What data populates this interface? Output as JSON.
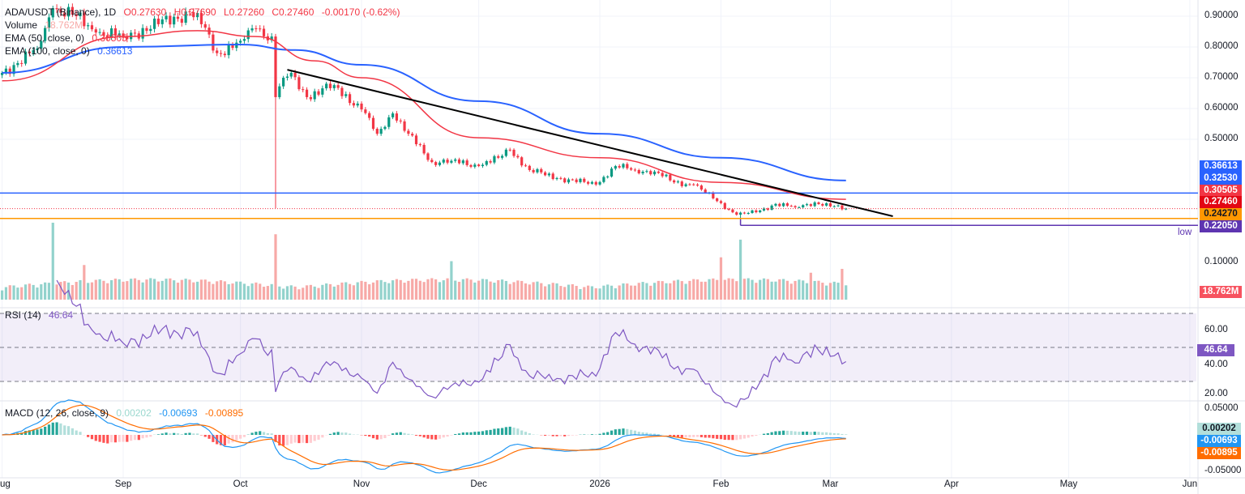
{
  "header": {
    "symbol": "ADA/USDT (Binance), 1D",
    "open": "O0.27630",
    "high": "H0.27690",
    "low": "L0.27260",
    "close": "C0.27460",
    "change": "-0.00170 (-0.62%)"
  },
  "indicators": {
    "volume_label": "Volume",
    "volume_value": "18.762M",
    "ema50_label": "EMA (50, close, 0)",
    "ema50_value": "0.30505",
    "ema100_label": "EMA (100, close, 0)",
    "ema100_value": "0.36613",
    "rsi_label": "RSI (14)",
    "rsi_value": "46.64",
    "macd_label": "MACD (12, 26, close, 9)",
    "macd_hist": "0.00202",
    "macd_line": "-0.00693",
    "macd_signal": "-0.00895"
  },
  "colors": {
    "up": "#089981",
    "down": "#f23645",
    "up_vol": "#92d2cc",
    "down_vol": "#f7a9a7",
    "ema50": "#f23645",
    "ema100": "#2962ff",
    "rsi": "#7e57c2",
    "macd": "#2196f3",
    "signal": "#ff6d00",
    "trendline": "#000000",
    "support_blue": "#2962ff",
    "support_orange": "#ff9800",
    "low_line": "#5e35b1"
  },
  "price_axis": {
    "ticks": [
      "0.90000",
      "0.80000",
      "0.70000",
      "0.60000",
      "0.50000",
      "0.10000"
    ]
  },
  "rsi_axis": {
    "ticks": [
      "60.00",
      "40.00",
      "20.00"
    ]
  },
  "macd_axis": {
    "ticks": [
      "0.05000",
      "-0.05000"
    ]
  },
  "badges": [
    {
      "text": "0.36613",
      "value": 0.36613,
      "color": "#2962ff",
      "fg": "#fff"
    },
    {
      "text": "0.32530",
      "value": 0.3253,
      "color": "#2962ff",
      "fg": "#fff"
    },
    {
      "text": "0.30505",
      "value": 0.30505,
      "color": "#f23645",
      "fg": "#fff"
    },
    {
      "text": "0.27460",
      "value": 0.2746,
      "color": "#e30613",
      "fg": "#fff"
    },
    {
      "text": "0.24270",
      "value": 0.2427,
      "color": "#ff9800",
      "fg": "#131722"
    },
    {
      "text": "0.22050",
      "value": 0.2205,
      "color": "#5e35b1",
      "fg": "#fff"
    }
  ],
  "low_label": "low",
  "volume_badge": "18.762M",
  "rsi_badge": "46.64",
  "macd_badges": [
    "0.00202",
    "-0.00693",
    "-0.00895"
  ],
  "time_axis": [
    {
      "label": "Aug",
      "date": "2025-08-01"
    },
    {
      "label": "Sep",
      "date": "2025-09-01"
    },
    {
      "label": "Oct",
      "date": "2025-10-01"
    },
    {
      "label": "Nov",
      "date": "2025-11-01"
    },
    {
      "label": "Dec",
      "date": "2025-12-01"
    },
    {
      "label": "2026",
      "date": "2026-01-01"
    },
    {
      "label": "Feb",
      "date": "2026-02-01"
    },
    {
      "label": "Mar",
      "date": "2026-03-01"
    },
    {
      "label": "Apr",
      "date": "2026-04-01"
    },
    {
      "label": "May",
      "date": "2026-05-01"
    },
    {
      "label": "Jun",
      "date": "2026-06-01"
    }
  ],
  "chart_data": {
    "type": "candlestick",
    "x_range": [
      "2025-08-01",
      "2026-06-01"
    ],
    "y_range": [
      0.05,
      0.95
    ],
    "close_anchors": [
      [
        "2025-08-01",
        0.716
      ],
      [
        "2025-08-10",
        0.795
      ],
      [
        "2025-08-14",
        0.926
      ],
      [
        "2025-08-20",
        0.9
      ],
      [
        "2025-08-25",
        0.847
      ],
      [
        "2025-09-01",
        0.834
      ],
      [
        "2025-09-10",
        0.874
      ],
      [
        "2025-09-18",
        0.913
      ],
      [
        "2025-09-21",
        0.874
      ],
      [
        "2025-09-25",
        0.78
      ],
      [
        "2025-10-01",
        0.82
      ],
      [
        "2025-10-05",
        0.86
      ],
      [
        "2025-10-09",
        0.834
      ],
      [
        "2025-10-10",
        0.637
      ],
      [
        "2025-10-12",
        0.7
      ],
      [
        "2025-10-14",
        0.716
      ],
      [
        "2025-10-18",
        0.637
      ],
      [
        "2025-10-25",
        0.676
      ],
      [
        "2025-11-01",
        0.597
      ],
      [
        "2025-11-05",
        0.518
      ],
      [
        "2025-11-09",
        0.584
      ],
      [
        "2025-11-13",
        0.518
      ],
      [
        "2025-11-19",
        0.426
      ],
      [
        "2025-11-24",
        0.43
      ],
      [
        "2025-12-01",
        0.413
      ],
      [
        "2025-12-06",
        0.44
      ],
      [
        "2025-12-09",
        0.466
      ],
      [
        "2025-12-14",
        0.4
      ],
      [
        "2025-12-21",
        0.374
      ],
      [
        "2025-12-31",
        0.353
      ],
      [
        "2026-01-05",
        0.413
      ],
      [
        "2026-01-10",
        0.4
      ],
      [
        "2026-01-15",
        0.395
      ],
      [
        "2026-01-20",
        0.36
      ],
      [
        "2026-01-25",
        0.353
      ],
      [
        "2026-01-30",
        0.308
      ],
      [
        "2026-02-05",
        0.255
      ],
      [
        "2026-02-10",
        0.263
      ],
      [
        "2026-02-15",
        0.29
      ],
      [
        "2026-02-20",
        0.279
      ],
      [
        "2026-02-25",
        0.295
      ],
      [
        "2026-03-01",
        0.282
      ],
      [
        "2026-03-05",
        0.2746
      ]
    ],
    "wicks": [
      [
        "2025-10-10",
        0.276
      ],
      [
        "2026-02-06",
        0.2205
      ]
    ],
    "ema50": [
      [
        "2025-08-01",
        0.69
      ],
      [
        "2025-09-01",
        0.834
      ],
      [
        "2025-09-20",
        0.853
      ],
      [
        "2025-10-05",
        0.834
      ],
      [
        "2025-10-20",
        0.755
      ],
      [
        "2025-11-01",
        0.7
      ],
      [
        "2025-12-01",
        0.505
      ],
      [
        "2026-01-01",
        0.44
      ],
      [
        "2026-02-01",
        0.36
      ],
      [
        "2026-03-05",
        0.30505
      ]
    ],
    "ema100": [
      [
        "2025-08-01",
        0.716
      ],
      [
        "2025-09-01",
        0.8
      ],
      [
        "2025-10-01",
        0.808
      ],
      [
        "2025-10-15",
        0.79
      ],
      [
        "2025-11-01",
        0.742
      ],
      [
        "2025-12-01",
        0.624
      ],
      [
        "2026-01-01",
        0.518
      ],
      [
        "2026-02-01",
        0.44
      ],
      [
        "2026-03-05",
        0.36613
      ]
    ],
    "trendline": [
      [
        "2025-10-13",
        0.726
      ],
      [
        "2026-03-17",
        0.25
      ]
    ],
    "horizontal_lines": [
      {
        "value": 0.3253,
        "color": "#2962ff",
        "style": "solid"
      },
      {
        "value": 0.2427,
        "color": "#ff9800",
        "style": "solid"
      },
      {
        "value": 0.2746,
        "color": "#f23645",
        "style": "dotted"
      },
      {
        "value": 0.2205,
        "color": "#5e35b1",
        "style": "solid",
        "from": "2026-02-06"
      }
    ],
    "volume_spikes": [
      [
        "2025-08-14",
        1.0
      ],
      [
        "2025-10-10",
        0.85
      ],
      [
        "2025-08-22",
        0.45
      ],
      [
        "2025-11-24",
        0.5
      ],
      [
        "2026-02-01",
        0.55
      ],
      [
        "2026-02-06",
        0.78
      ],
      [
        "2026-02-24",
        0.35
      ],
      [
        "2026-03-04",
        0.4
      ]
    ],
    "rsi_levels": [
      70,
      50,
      30
    ],
    "last_volume": "18.762M"
  }
}
